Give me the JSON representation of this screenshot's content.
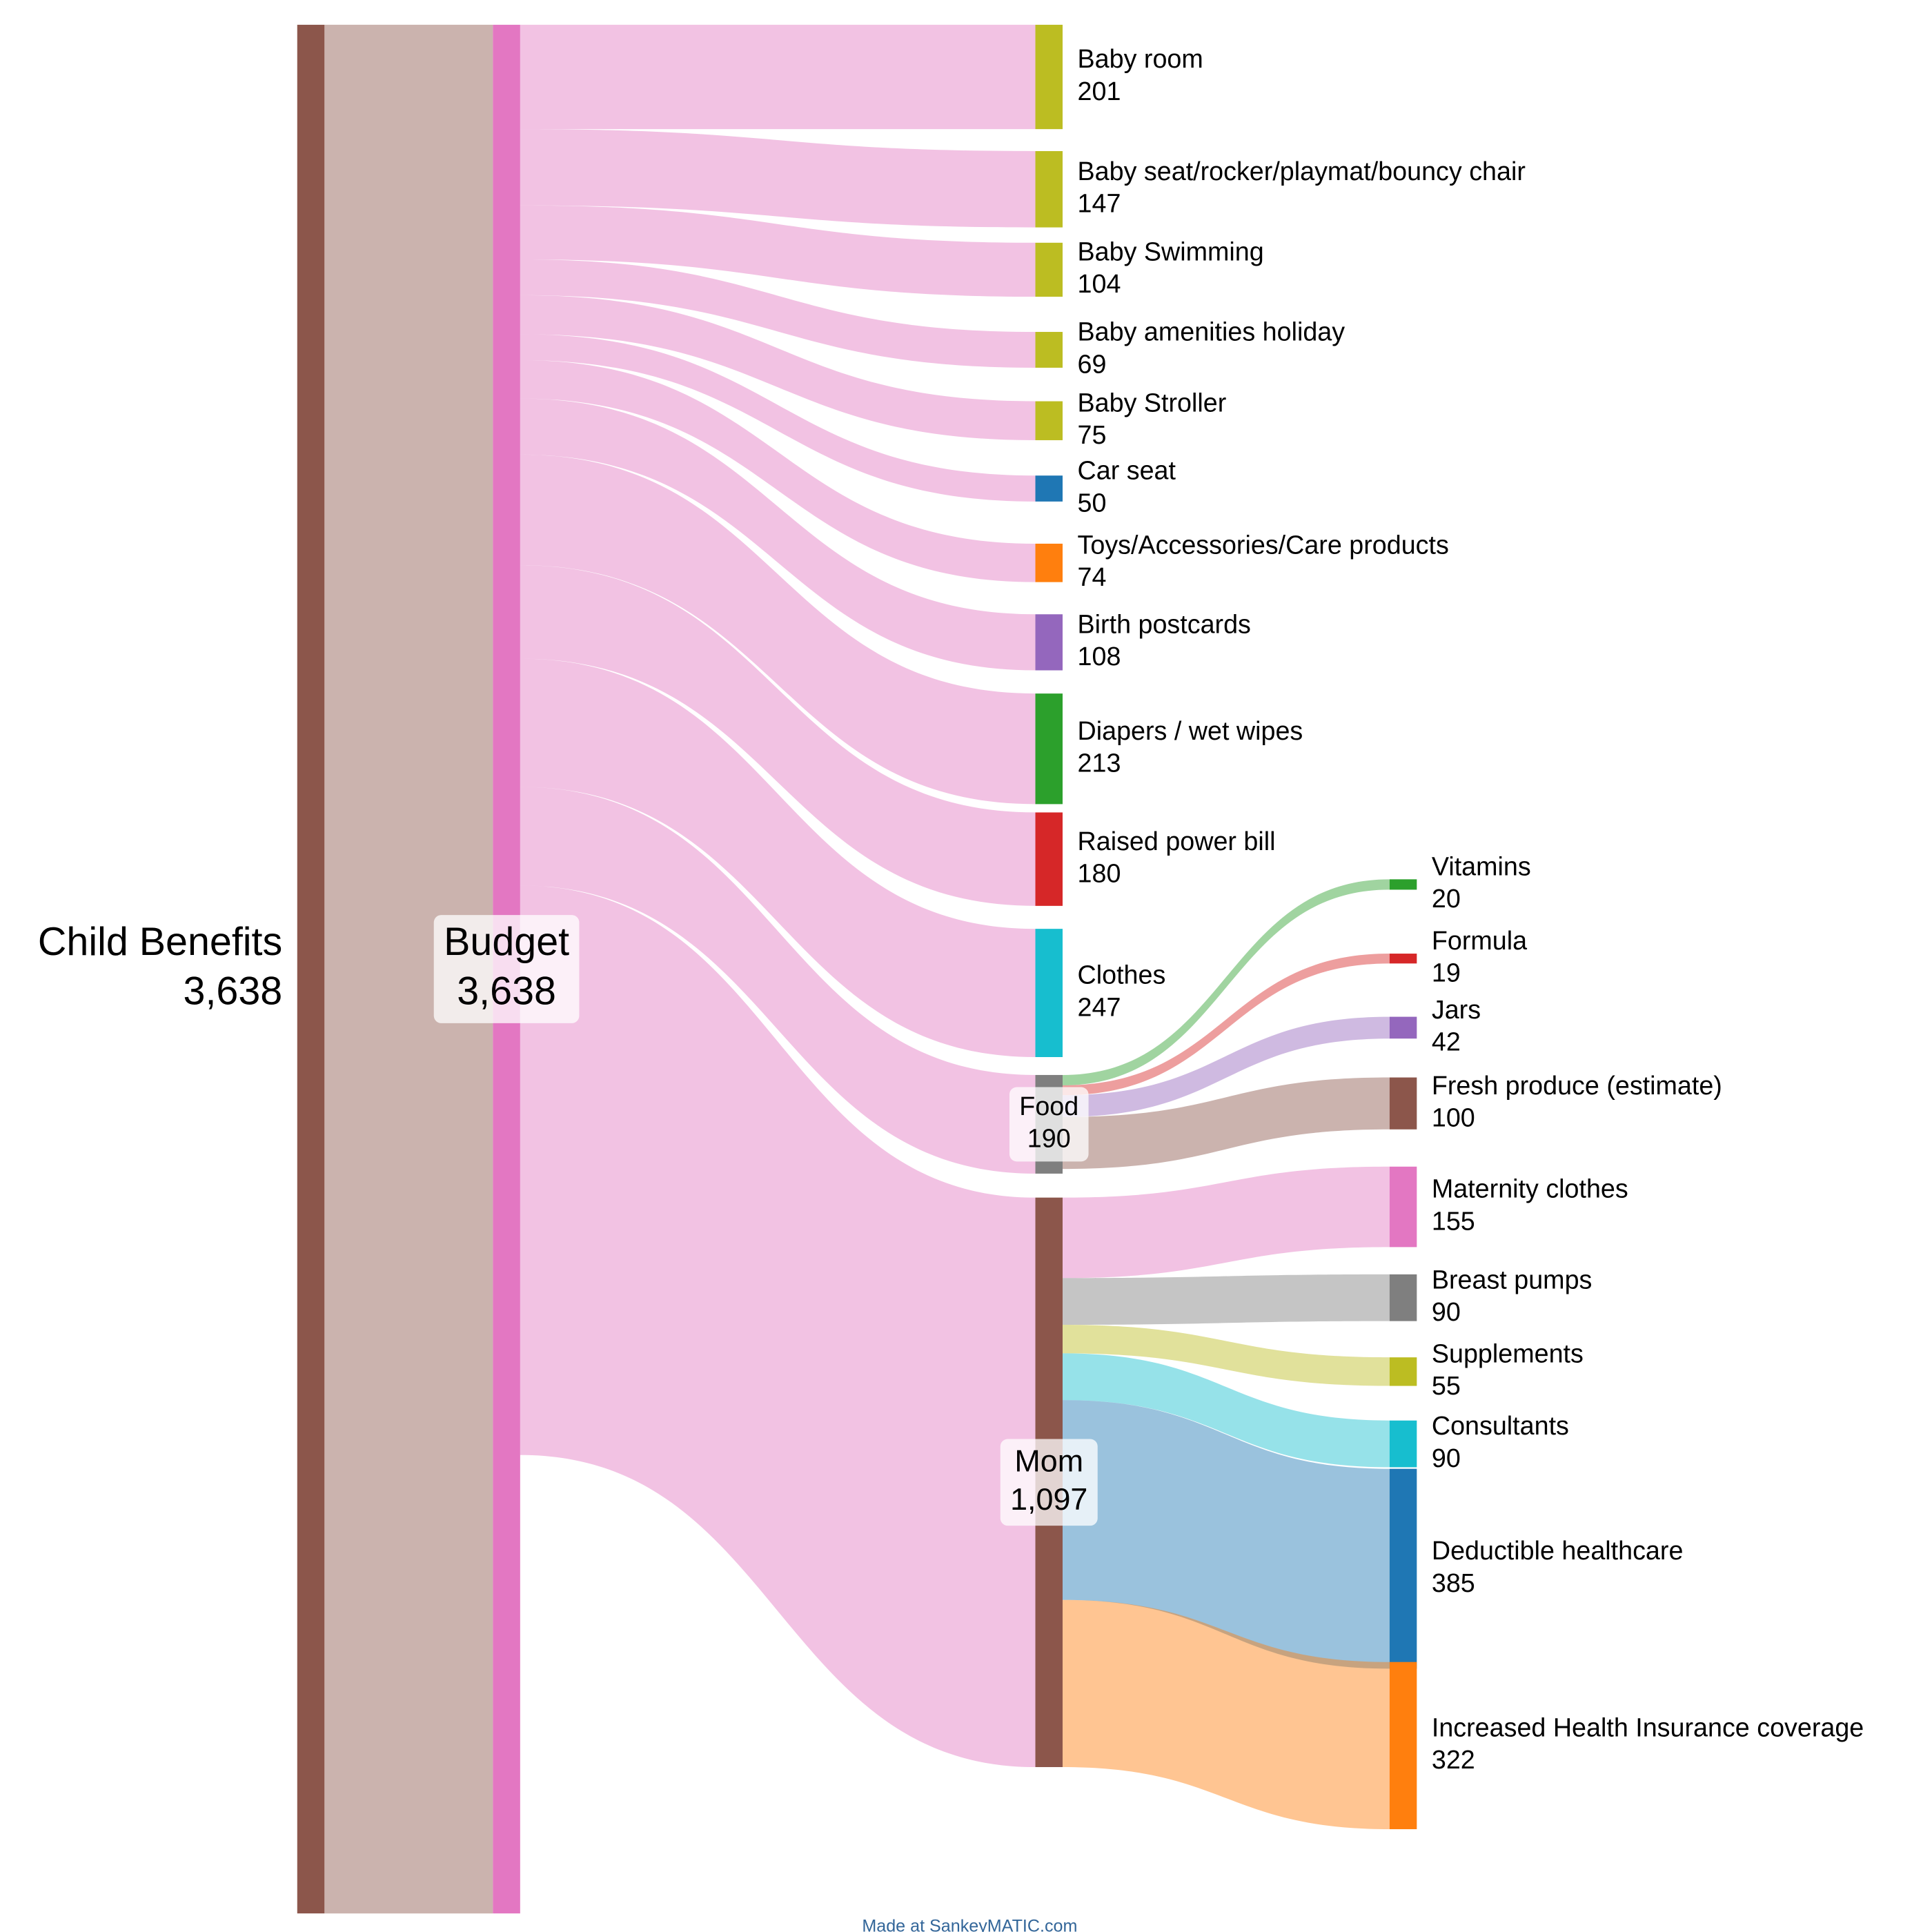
{
  "chart_data": {
    "type": "sankey",
    "nodes": [
      {
        "name": "Child Benefits",
        "value": 3638,
        "value_label": "3,638",
        "color": "#8c564b"
      },
      {
        "name": "Budget",
        "value": 3638,
        "value_label": "3,638",
        "color": "#e377c2"
      },
      {
        "name": "Baby room",
        "value": 201,
        "color": "#bcbd22"
      },
      {
        "name": "Baby seat/rocker/playmat/bouncy chair",
        "value": 147,
        "color": "#bcbd22"
      },
      {
        "name": "Baby Swimming",
        "value": 104,
        "color": "#bcbd22"
      },
      {
        "name": "Baby amenities holiday",
        "value": 69,
        "color": "#bcbd22"
      },
      {
        "name": "Baby Stroller",
        "value": 75,
        "color": "#bcbd22"
      },
      {
        "name": "Car seat",
        "value": 50,
        "color": "#1f77b4"
      },
      {
        "name": "Toys/Accessories/Care products",
        "value": 74,
        "color": "#ff7f0e"
      },
      {
        "name": "Birth postcards",
        "value": 108,
        "color": "#9467bd"
      },
      {
        "name": "Diapers / wet wipes",
        "value": 213,
        "color": "#2ca02c"
      },
      {
        "name": "Raised power bill",
        "value": 180,
        "color": "#d62728"
      },
      {
        "name": "Clothes",
        "value": 247,
        "color": "#17becf"
      },
      {
        "name": "Food",
        "value": 190,
        "color": "#7f7f7f"
      },
      {
        "name": "Mom",
        "value": 1097,
        "value_label": "1,097",
        "color": "#8c564b"
      },
      {
        "name": "Vitamins",
        "value": 20,
        "color": "#2ca02c"
      },
      {
        "name": "Formula",
        "value": 19,
        "color": "#d62728"
      },
      {
        "name": "Jars",
        "value": 42,
        "color": "#9467bd"
      },
      {
        "name": "Fresh produce (estimate)",
        "value": 100,
        "color": "#8c564b"
      },
      {
        "name": "Maternity clothes",
        "value": 155,
        "color": "#e377c2"
      },
      {
        "name": "Breast pumps",
        "value": 90,
        "color": "#7f7f7f"
      },
      {
        "name": "Supplements",
        "value": 55,
        "color": "#bcbd22"
      },
      {
        "name": "Consultants",
        "value": 90,
        "color": "#17becf"
      },
      {
        "name": "Deductible healthcare",
        "value": 385,
        "color": "#1f77b4"
      },
      {
        "name": "Increased Health Insurance coverage",
        "value": 322,
        "color": "#ff7f0e"
      }
    ],
    "links": [
      {
        "source": 0,
        "target": 1,
        "color": "source"
      },
      {
        "source": 1,
        "target": 2,
        "color": "source"
      },
      {
        "source": 1,
        "target": 3,
        "color": "source"
      },
      {
        "source": 1,
        "target": 4,
        "color": "source"
      },
      {
        "source": 1,
        "target": 5,
        "color": "source"
      },
      {
        "source": 1,
        "target": 6,
        "color": "source"
      },
      {
        "source": 1,
        "target": 7,
        "color": "source"
      },
      {
        "source": 1,
        "target": 8,
        "color": "source"
      },
      {
        "source": 1,
        "target": 9,
        "color": "source"
      },
      {
        "source": 1,
        "target": 10,
        "color": "source"
      },
      {
        "source": 1,
        "target": 11,
        "color": "source"
      },
      {
        "source": 1,
        "target": 12,
        "color": "source"
      },
      {
        "source": 1,
        "target": 13,
        "color": "source"
      },
      {
        "source": 1,
        "target": 14,
        "color": "source"
      },
      {
        "source": 13,
        "target": 15,
        "color": "target"
      },
      {
        "source": 13,
        "target": 16,
        "color": "target"
      },
      {
        "source": 13,
        "target": 17,
        "color": "target"
      },
      {
        "source": 13,
        "target": 18,
        "color": "target"
      },
      {
        "source": 14,
        "target": 19,
        "color": "target"
      },
      {
        "source": 14,
        "target": 20,
        "color": "target"
      },
      {
        "source": 14,
        "target": 21,
        "color": "target"
      },
      {
        "source": 14,
        "target": 22,
        "color": "target"
      },
      {
        "source": 14,
        "target": 23,
        "color": "target"
      },
      {
        "source": 14,
        "target": 24,
        "color": "target"
      }
    ],
    "footer": "Made at SankeyMATIC.com"
  }
}
